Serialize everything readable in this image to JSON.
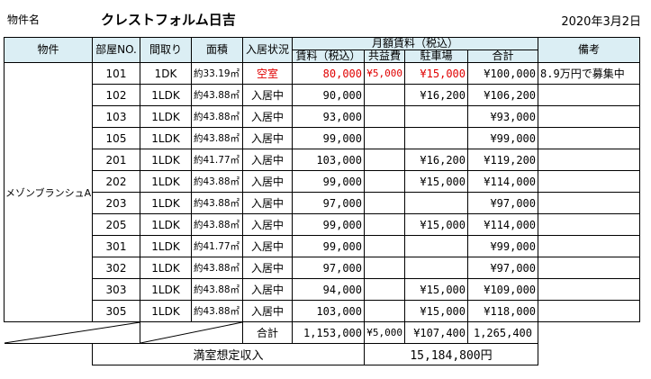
{
  "header": {
    "label": "物件名",
    "title": "クレストフォルム日吉",
    "date": "2020年3月2日"
  },
  "table": {
    "col_property": "物件",
    "col_room": "部屋NO.",
    "col_layout": "間取り",
    "col_area": "面積",
    "col_status": "入居状況",
    "col_rent_group": "月額賃料（税込）",
    "col_rent": "賃料（税込）",
    "col_common": "共益費",
    "col_parking": "駐車場",
    "col_total": "合計",
    "col_note": "備考",
    "property_name": "メゾンブランシュA",
    "rows": [
      {
        "room": "101",
        "layout": "1DK",
        "area": "約33.19㎡",
        "status": "空室",
        "rent": "80,000",
        "common": "¥5,000",
        "parking": "¥15,000",
        "total": "¥100,000",
        "note": "8.9万円で募集中",
        "vacant": true
      },
      {
        "room": "102",
        "layout": "1LDK",
        "area": "約43.88㎡",
        "status": "入居中",
        "rent": "90,000",
        "common": "",
        "parking": "¥16,200",
        "total": "¥106,200",
        "note": ""
      },
      {
        "room": "103",
        "layout": "1LDK",
        "area": "約43.88㎡",
        "status": "入居中",
        "rent": "93,000",
        "common": "",
        "parking": "",
        "total": "¥93,000",
        "note": ""
      },
      {
        "room": "105",
        "layout": "1LDK",
        "area": "約43.88㎡",
        "status": "入居中",
        "rent": "99,000",
        "common": "",
        "parking": "",
        "total": "¥99,000",
        "note": ""
      },
      {
        "room": "201",
        "layout": "1LDK",
        "area": "約41.77㎡",
        "status": "入居中",
        "rent": "103,000",
        "common": "",
        "parking": "¥16,200",
        "total": "¥119,200",
        "note": ""
      },
      {
        "room": "202",
        "layout": "1LDK",
        "area": "約43.88㎡",
        "status": "入居中",
        "rent": "99,000",
        "common": "",
        "parking": "¥15,000",
        "total": "¥114,000",
        "note": ""
      },
      {
        "room": "203",
        "layout": "1LDK",
        "area": "約43.88㎡",
        "status": "入居中",
        "rent": "97,000",
        "common": "",
        "parking": "",
        "total": "¥97,000",
        "note": ""
      },
      {
        "room": "205",
        "layout": "1LDK",
        "area": "約43.88㎡",
        "status": "入居中",
        "rent": "99,000",
        "common": "",
        "parking": "¥15,000",
        "total": "¥114,000",
        "note": ""
      },
      {
        "room": "301",
        "layout": "1LDK",
        "area": "約41.77㎡",
        "status": "入居中",
        "rent": "99,000",
        "common": "",
        "parking": "",
        "total": "¥99,000",
        "note": ""
      },
      {
        "room": "302",
        "layout": "1LDK",
        "area": "約43.88㎡",
        "status": "入居中",
        "rent": "97,000",
        "common": "",
        "parking": "",
        "total": "¥97,000",
        "note": ""
      },
      {
        "room": "303",
        "layout": "1LDK",
        "area": "約43.88㎡",
        "status": "入居中",
        "rent": "94,000",
        "common": "",
        "parking": "¥15,000",
        "total": "¥109,000",
        "note": ""
      },
      {
        "room": "305",
        "layout": "1LDK",
        "area": "約43.88㎡",
        "status": "入居中",
        "rent": "103,000",
        "common": "",
        "parking": "¥15,000",
        "total": "¥118,000",
        "note": ""
      }
    ],
    "totals": {
      "label": "合計",
      "rent": "1,153,000",
      "common": "¥5,000",
      "parking": "¥107,400",
      "total": "1,265,400"
    },
    "full_occupancy": {
      "label": "満室想定収入",
      "value": "15,184,800円"
    }
  },
  "colors": {
    "header_bg": "#dbeef4",
    "vacant": "#e00000"
  }
}
